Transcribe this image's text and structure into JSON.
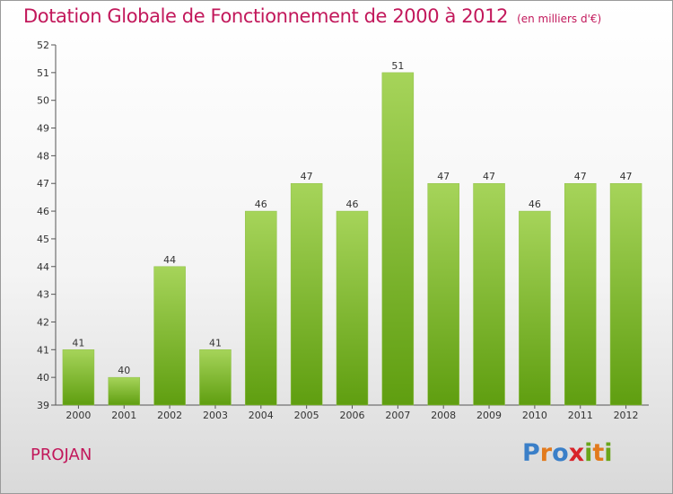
{
  "chart_data": {
    "type": "bar",
    "title": "Dotation Globale de Fonctionnement de 2000 à 2012",
    "subtitle": "(en milliers d'€)",
    "categories": [
      "2000",
      "2001",
      "2002",
      "2003",
      "2004",
      "2005",
      "2006",
      "2007",
      "2008",
      "2009",
      "2010",
      "2011",
      "2012"
    ],
    "values": [
      41,
      40,
      44,
      41,
      46,
      47,
      46,
      51,
      47,
      47,
      46,
      47,
      47
    ],
    "ylim": [
      39,
      52
    ],
    "yticks": [
      39,
      40,
      41,
      42,
      43,
      44,
      45,
      46,
      47,
      48,
      49,
      50,
      51,
      52
    ],
    "grid": false,
    "bar_color_top": "#a6d45a",
    "bar_color_bottom": "#5f9e10"
  },
  "footer": {
    "city": "PROJAN",
    "logo_letters": [
      {
        "ch": "P",
        "color": "#3a7fc8"
      },
      {
        "ch": "r",
        "color": "#e27a1d"
      },
      {
        "ch": "o",
        "color": "#3a7fc8"
      },
      {
        "ch": "x",
        "color": "#d8242a"
      },
      {
        "ch": "i",
        "color": "#6aa51a"
      },
      {
        "ch": "t",
        "color": "#e27a1d"
      },
      {
        "ch": "i",
        "color": "#6aa51a"
      }
    ]
  }
}
